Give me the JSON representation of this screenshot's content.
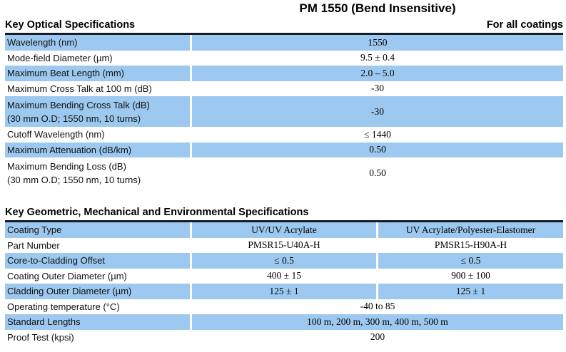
{
  "title": "PM 1550 (Bend Insensitive)",
  "colors": {
    "row_shaded": "#9DC9F0",
    "rule": "#171D26"
  },
  "optical": {
    "header_left": "Key Optical Specifications",
    "header_right": "For all coatings",
    "rows": [
      {
        "label": "Wavelength (nm)",
        "value": "1550"
      },
      {
        "label": "Mode-field Diameter (µm)",
        "value": "9.5 ± 0.4"
      },
      {
        "label": "Maximum Beat Length (mm)",
        "value": "2.0 – 5.0"
      },
      {
        "label": "Maximum Cross Talk at 100 m (dB)",
        "value": "-30"
      },
      {
        "label": "Maximum Bending Cross Talk (dB)",
        "label2": "(30 mm O.D; 1550 nm, 10 turns)",
        "value": "-30"
      },
      {
        "label": "Cutoff Wavelength (nm)",
        "value": "≤ 1440"
      },
      {
        "label": "Maximum Attenuation (dB/km)",
        "value": "0.50"
      },
      {
        "label": "Maximum Bending Loss (dB)",
        "label2": "(30 mm O.D; 1550 nm, 10 turns)",
        "value": "0.50"
      }
    ]
  },
  "geometric": {
    "header": "Key Geometric, Mechanical and Environmental Specifications",
    "rows": [
      {
        "label": "Coating Type",
        "values": [
          "UV/UV Acrylate",
          "UV Acrylate/Polyester-Elastomer"
        ]
      },
      {
        "label": "Part Number",
        "values": [
          "PMSR15-U40A-H",
          "PMSR15-H90A-H"
        ]
      },
      {
        "label": "Core-to-Cladding Offset",
        "values": [
          "≤ 0.5",
          "≤ 0.5"
        ]
      },
      {
        "label": "Coating Outer Diameter (µm)",
        "values": [
          "400 ± 15",
          "900 ± 100"
        ]
      },
      {
        "label": "Cladding Outer Diameter (µm)",
        "values": [
          "125 ± 1",
          "125 ± 1"
        ]
      },
      {
        "label": "Operating temperature (°C)",
        "values": [
          "-40 to 85"
        ]
      },
      {
        "label": "Standard Lengths",
        "values": [
          "100 m, 200 m, 300 m, 400 m, 500 m"
        ]
      },
      {
        "label": "Proof Test (kpsi)",
        "values": [
          "200"
        ]
      }
    ]
  }
}
